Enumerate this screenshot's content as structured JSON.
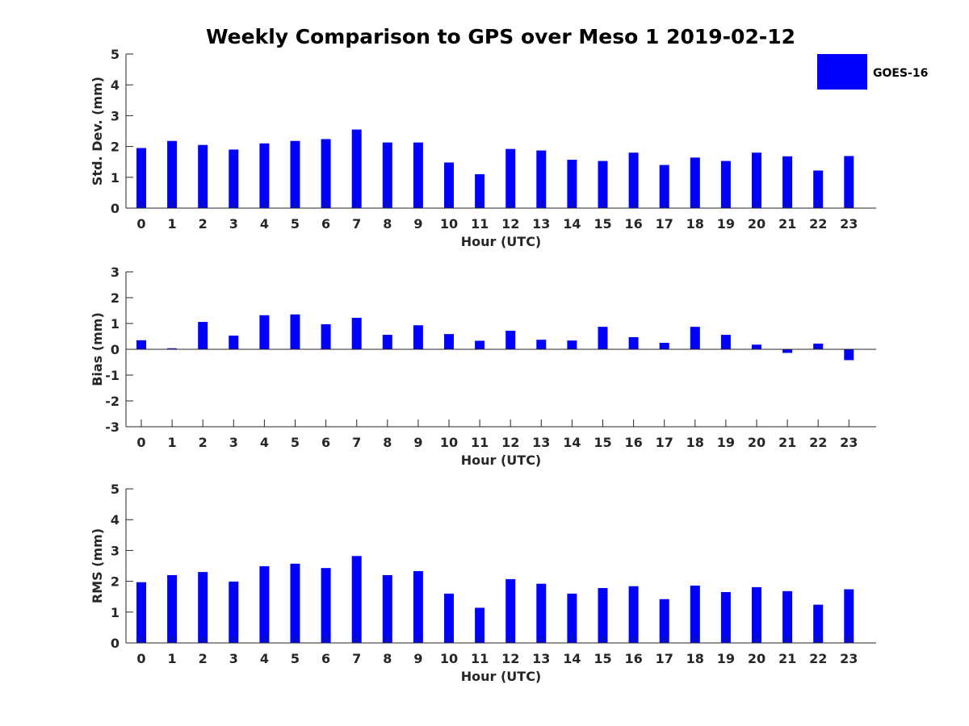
{
  "chart_data": {
    "title": "Weekly Comparison to GPS over Meso 1 2019-02-12",
    "legend": {
      "label": "GOES-16",
      "color": "#0000ff",
      "position": "top-right"
    },
    "type": "bar",
    "subplots": [
      {
        "name": "std-dev",
        "xlabel": "Hour (UTC)",
        "ylabel": "Std. Dev. (mm)",
        "ylim": [
          0,
          5
        ],
        "yticks": [
          0,
          1,
          2,
          3,
          4,
          5
        ],
        "zero_line": false,
        "categories": [
          "0",
          "1",
          "2",
          "3",
          "4",
          "5",
          "6",
          "7",
          "8",
          "9",
          "10",
          "11",
          "12",
          "13",
          "14",
          "15",
          "16",
          "17",
          "18",
          "19",
          "20",
          "21",
          "22",
          "23"
        ],
        "series": [
          {
            "name": "GOES-16",
            "values": [
              1.95,
              2.18,
              2.05,
              1.9,
              2.1,
              2.18,
              2.24,
              2.55,
              2.13,
              2.13,
              1.48,
              1.1,
              1.92,
              1.87,
              1.57,
              1.53,
              1.8,
              1.4,
              1.64,
              1.53,
              1.8,
              1.68,
              1.22,
              1.69
            ]
          }
        ]
      },
      {
        "name": "bias",
        "xlabel": "Hour (UTC)",
        "ylabel": "Bias (mm)",
        "ylim": [
          -3,
          3
        ],
        "yticks": [
          -3,
          -2,
          -1,
          0,
          1,
          2,
          3
        ],
        "zero_line": true,
        "categories": [
          "0",
          "1",
          "2",
          "3",
          "4",
          "5",
          "6",
          "7",
          "8",
          "9",
          "10",
          "11",
          "12",
          "13",
          "14",
          "15",
          "16",
          "17",
          "18",
          "19",
          "20",
          "21",
          "22",
          "23"
        ],
        "series": [
          {
            "name": "GOES-16",
            "values": [
              0.35,
              0.04,
              1.06,
              0.53,
              1.32,
              1.35,
              0.97,
              1.22,
              0.56,
              0.93,
              0.59,
              0.33,
              0.72,
              0.37,
              0.34,
              0.87,
              0.47,
              0.25,
              0.87,
              0.56,
              0.18,
              -0.14,
              0.22,
              -0.42
            ]
          }
        ]
      },
      {
        "name": "rms",
        "xlabel": "Hour (UTC)",
        "ylabel": "RMS (mm)",
        "ylim": [
          0,
          5
        ],
        "yticks": [
          0,
          1,
          2,
          3,
          4,
          5
        ],
        "zero_line": false,
        "categories": [
          "0",
          "1",
          "2",
          "3",
          "4",
          "5",
          "6",
          "7",
          "8",
          "9",
          "10",
          "11",
          "12",
          "13",
          "14",
          "15",
          "16",
          "17",
          "18",
          "19",
          "20",
          "21",
          "22",
          "23"
        ],
        "series": [
          {
            "name": "GOES-16",
            "values": [
              1.97,
              2.2,
              2.3,
              1.99,
              2.49,
              2.57,
              2.43,
              2.82,
              2.2,
              2.33,
              1.6,
              1.14,
              2.07,
              1.92,
              1.6,
              1.78,
              1.84,
              1.42,
              1.86,
              1.65,
              1.81,
              1.68,
              1.24,
              1.74
            ]
          }
        ]
      }
    ]
  }
}
